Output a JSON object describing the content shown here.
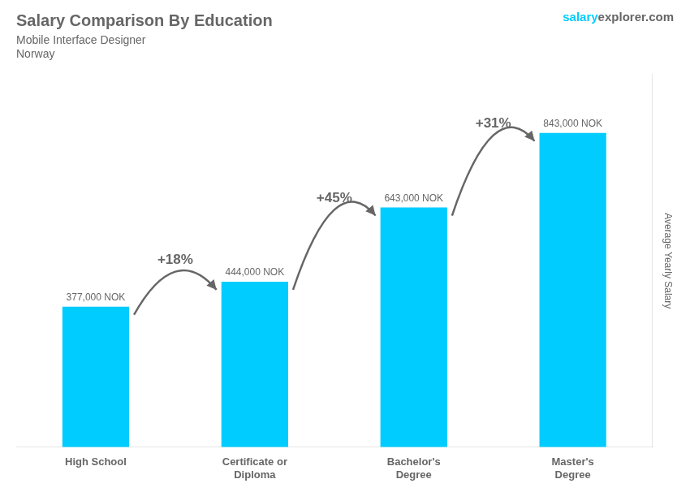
{
  "chart_data": {
    "type": "bar",
    "title": "Salary Comparison By Education",
    "subtitle": "Mobile Interface Designer",
    "country": "Norway",
    "brand": [
      "salary",
      "explorer.com"
    ],
    "ylabel": "Average Yearly Salary",
    "categories": [
      "High School",
      "Certificate or\nDiploma",
      "Bachelor's\nDegree",
      "Master's\nDegree"
    ],
    "values": [
      377000,
      444000,
      643000,
      843000
    ],
    "value_labels": [
      "377,000 NOK",
      "444,000 NOK",
      "643,000 NOK",
      "843,000 NOK"
    ],
    "data_labels": true,
    "color": "#00CCFF",
    "ylim": [
      0,
      1000000
    ],
    "grid": false,
    "tick_labels": "x",
    "annotations": [
      {
        "text": "+18%",
        "from": "High School",
        "to": "Certificate or\nDiploma"
      },
      {
        "text": "+45%",
        "from": "Certificate or\nDiploma",
        "to": "Bachelor's\nDegree"
      },
      {
        "text": "+31%",
        "from": "Bachelor's\nDegree",
        "to": "Master's\nDegree"
      }
    ]
  }
}
